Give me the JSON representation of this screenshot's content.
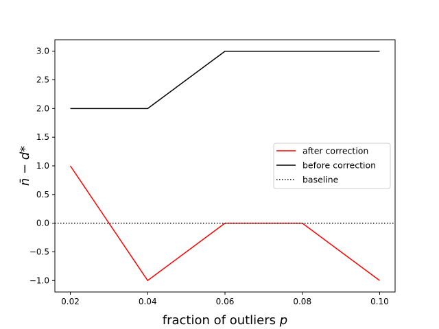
{
  "chart_data": {
    "type": "line",
    "title": "",
    "xlabel": "fraction of outliers",
    "xlabel_var": "p",
    "ylabel": "n̄ − d*",
    "xlim": [
      0.016,
      0.104
    ],
    "ylim": [
      -1.2,
      3.2
    ],
    "x_ticks": [
      0.02,
      0.04,
      0.06,
      0.08,
      0.1
    ],
    "x_tick_labels": [
      "0.02",
      "0.04",
      "0.06",
      "0.08",
      "0.10"
    ],
    "y_ticks": [
      -1.0,
      -0.5,
      0.0,
      0.5,
      1.0,
      1.5,
      2.0,
      2.5,
      3.0
    ],
    "y_tick_labels": [
      "−1.0",
      "−0.5",
      "0.0",
      "0.5",
      "1.0",
      "1.5",
      "2.0",
      "2.5",
      "3.0"
    ],
    "grid": false,
    "legend_position": "center-right",
    "series": [
      {
        "name": "after correction",
        "color": "#ff0000",
        "style": "solid",
        "x": [
          0.02,
          0.04,
          0.06,
          0.08,
          0.1
        ],
        "values": [
          1,
          -1,
          0,
          0,
          -1
        ]
      },
      {
        "name": "before correction",
        "color": "#000000",
        "style": "solid",
        "x": [
          0.02,
          0.04,
          0.06,
          0.08,
          0.1
        ],
        "values": [
          2,
          2,
          3,
          3,
          3
        ]
      },
      {
        "name": "baseline",
        "color": "#000000",
        "style": "dotted",
        "x": [
          0.016,
          0.104
        ],
        "values": [
          0,
          0
        ]
      }
    ]
  }
}
